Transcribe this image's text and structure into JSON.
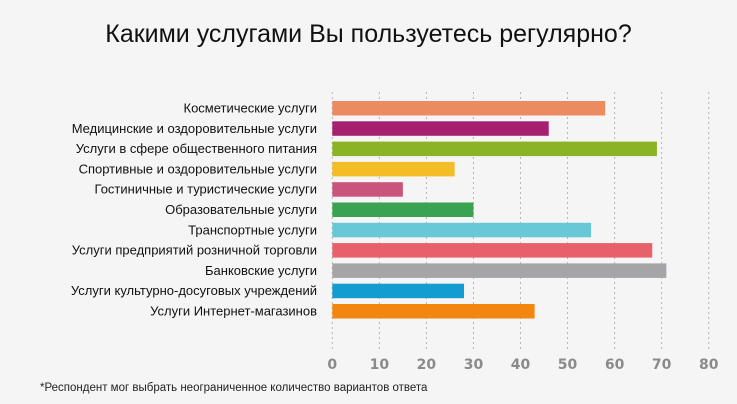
{
  "chart_data": {
    "type": "bar",
    "orientation": "horizontal",
    "title": "Какими услугами Вы пользуетесь регулярно?",
    "categories": [
      "Косметические услуги",
      "Медицинские и оздоровительные услуги",
      "Услуги в сфере общественного питания",
      "Спортивные и оздоровительные услуги",
      "Гостиничные и туристические услуги",
      "Образовательные услуги",
      "Транспортные услуги",
      "Услуги предприятий розничной торговли",
      "Банковские услуги",
      "Услуги культурно-досуговых учреждений",
      "Услуги Интернет-магазинов"
    ],
    "values": [
      58,
      46,
      69,
      26,
      15,
      30,
      55,
      68,
      71,
      28,
      43
    ],
    "colors": [
      "#ec8a62",
      "#a6206f",
      "#8ab425",
      "#f2bd25",
      "#c9557c",
      "#3aa352",
      "#67c8d6",
      "#e7606a",
      "#a5a4a7",
      "#139ccf",
      "#f3860f"
    ],
    "xlim": [
      0,
      80
    ],
    "xticks": [
      "0",
      "10",
      "20",
      "30",
      "40",
      "50",
      "60",
      "70",
      "80"
    ],
    "grid": "vertical dashed",
    "footnote": "*Респондент мог выбрать неограниченное количество вариантов ответа"
  }
}
